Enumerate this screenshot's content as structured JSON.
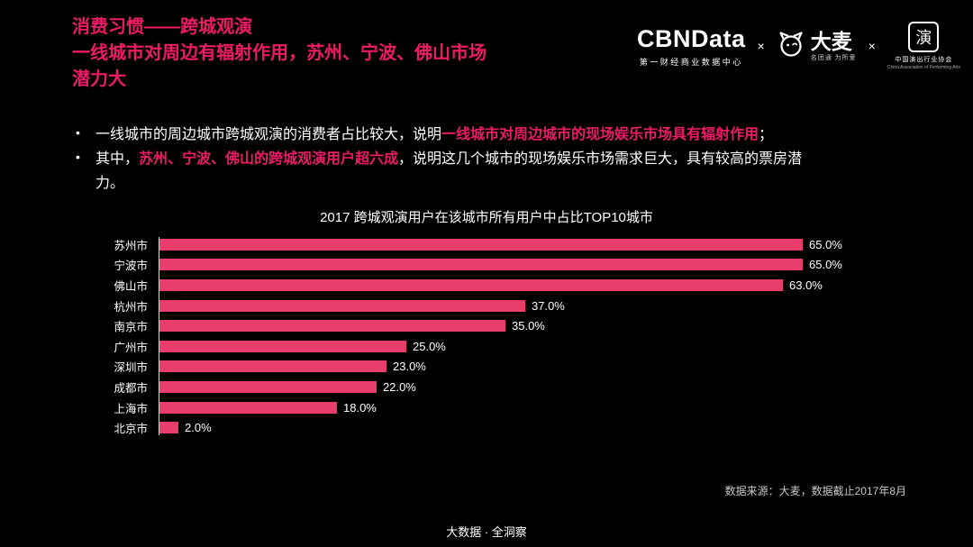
{
  "colors": {
    "background": "#000000",
    "accent": "#ed1a66",
    "bar": "#e93e6c",
    "text": "#ffffff",
    "muted": "#c9c9c9",
    "axis": "#d8d8d8"
  },
  "header": {
    "title_line1": "消费习惯——跨城观演",
    "title_line2": "一线城市对周边有辐射作用，苏州、宁波、佛山市场",
    "title_line3": "潜力大",
    "logos": {
      "cbndata": {
        "name": "CBNData",
        "subtitle": "第一财经商业数据中心"
      },
      "separator": "×",
      "damai": {
        "name": "大麦",
        "tagline": "名团通 为所爱"
      },
      "capa": {
        "seal": "演",
        "line1": "中国演出行业协会",
        "line2": "China Association of Performing Arts"
      }
    }
  },
  "bullets": [
    {
      "segments": [
        {
          "text": "一线城市的周边城市跨城观演的消费者占比较大，说明",
          "highlight": false
        },
        {
          "text": "一线城市对周边城市的现场娱乐市场具有辐射作用",
          "highlight": true
        },
        {
          "text": "；",
          "highlight": false
        }
      ]
    },
    {
      "segments": [
        {
          "text": "其中，",
          "highlight": false
        },
        {
          "text": "苏州、宁波、佛山的跨城观演用户超六成",
          "highlight": true
        },
        {
          "text": "，说明这几个城市的现场娱乐市场需求巨大，具有较高的票房潜力。",
          "highlight": false
        }
      ]
    }
  ],
  "chart_data": {
    "type": "bar",
    "orientation": "horizontal",
    "title": "2017 跨城观演用户在该城市所有用户中占比TOP10城市",
    "categories": [
      "苏州市",
      "宁波市",
      "佛山市",
      "杭州市",
      "南京市",
      "广州市",
      "深圳市",
      "成都市",
      "上海市",
      "北京市"
    ],
    "values": [
      65.0,
      65.0,
      63.0,
      37.0,
      35.0,
      25.0,
      23.0,
      22.0,
      18.0,
      2.0
    ],
    "value_labels": [
      "65.0%",
      "65.0%",
      "63.0%",
      "37.0%",
      "35.0%",
      "25.0%",
      "23.0%",
      "22.0%",
      "18.0%",
      "2.0%"
    ],
    "xlabel": "",
    "ylabel": "",
    "xlim": [
      0,
      72
    ],
    "grid": false,
    "legend": false,
    "bar_color": "#e93e6c"
  },
  "footer": {
    "source": "数据来源：大麦，数据截止2017年8月",
    "tagline": "大数据 · 全洞察"
  }
}
